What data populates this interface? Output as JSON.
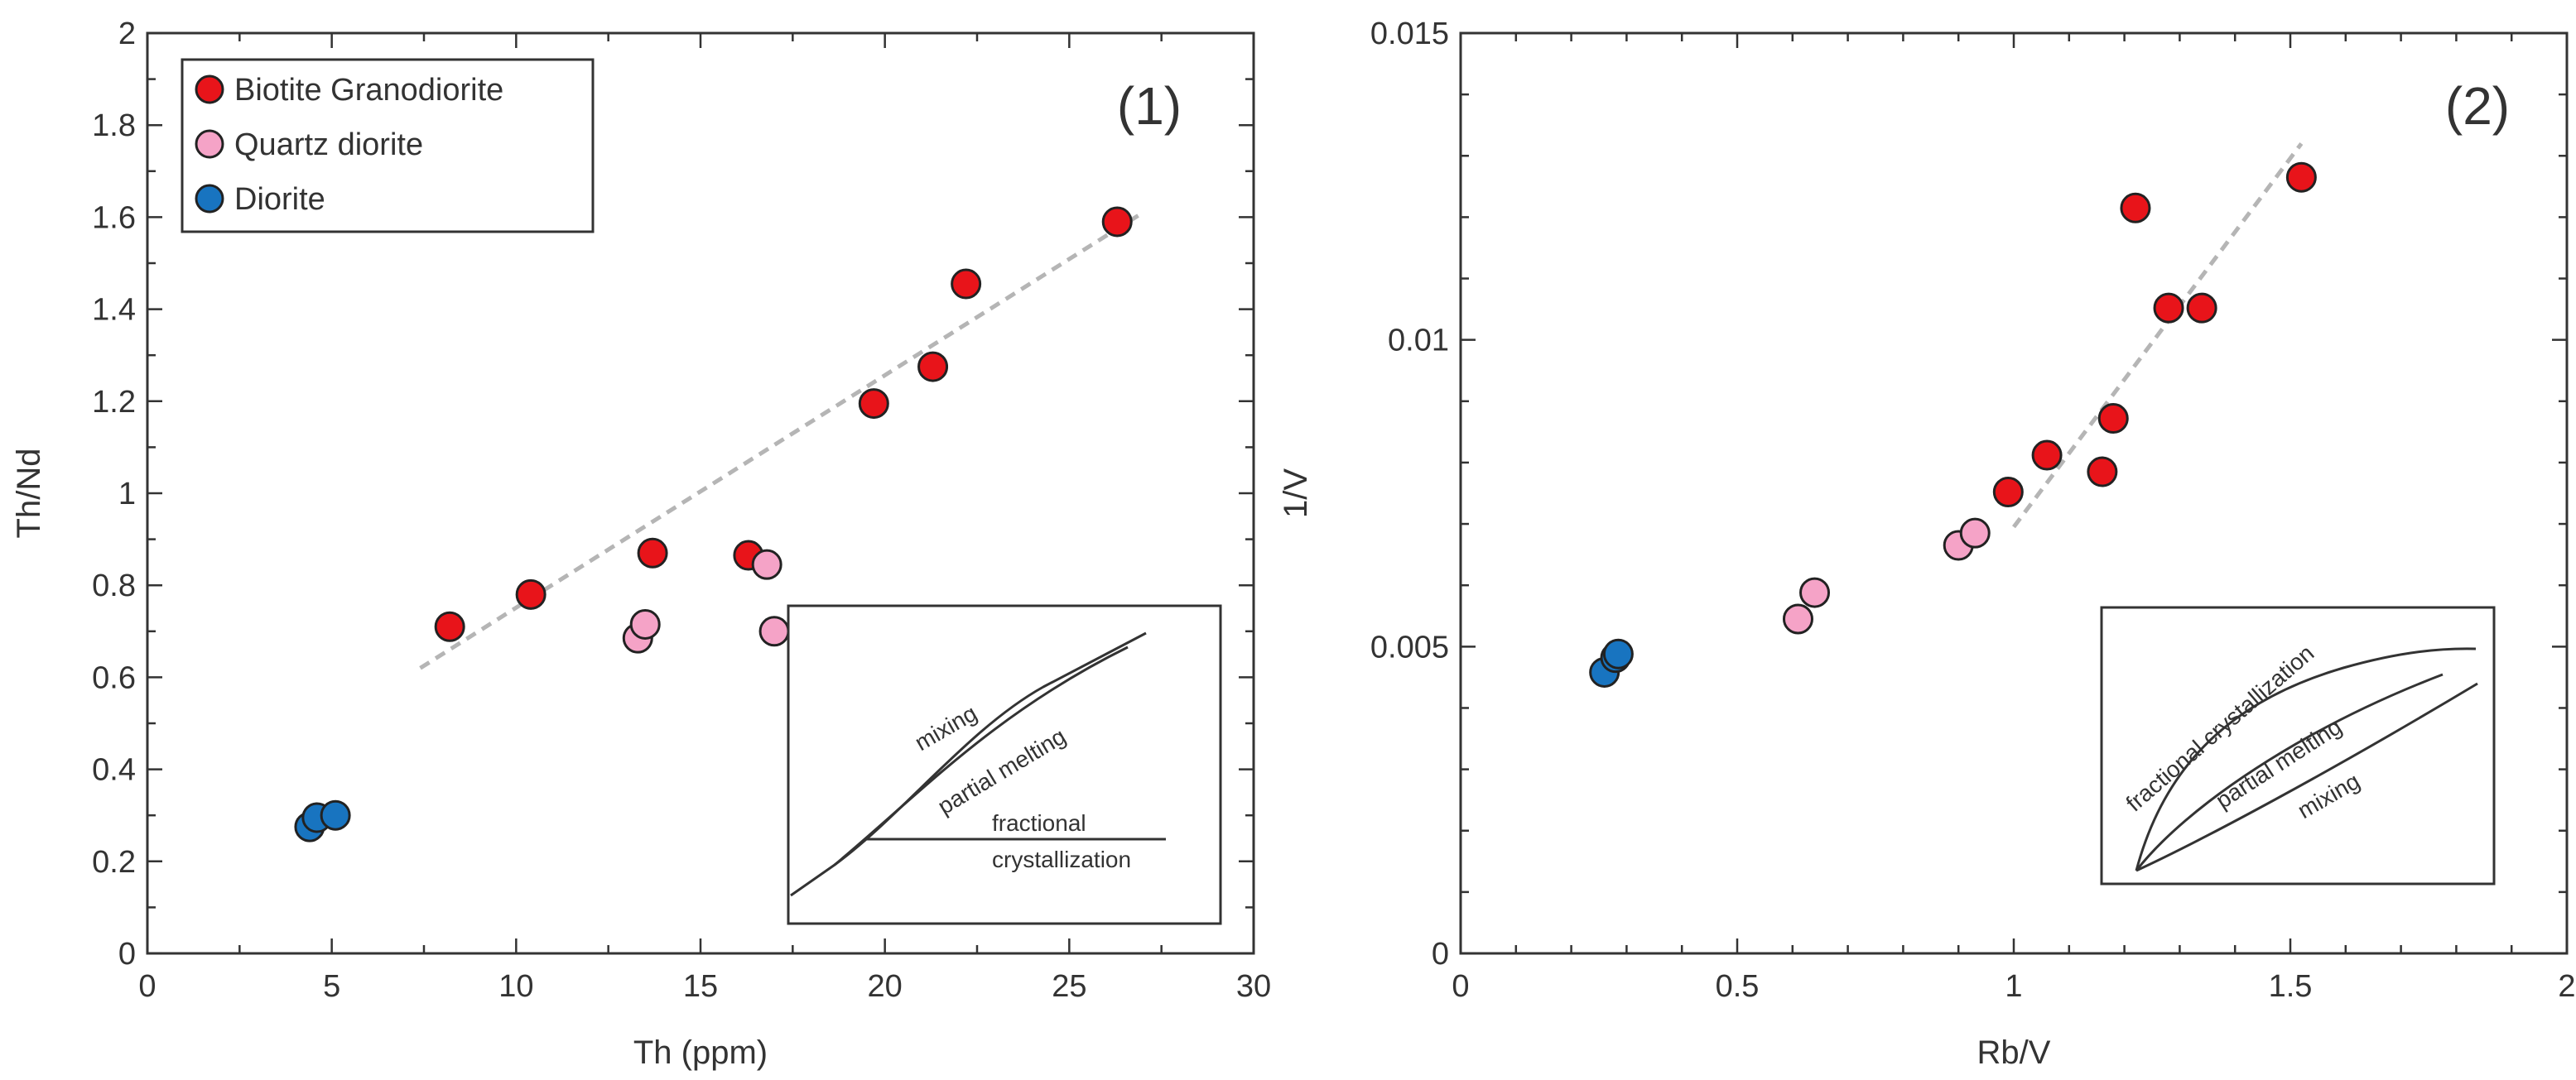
{
  "colors": {
    "Biotite Granodiorite": "#e8141a",
    "Quartz diorite": "#f5a3c7",
    "Diorite": "#1874c0"
  },
  "chart_data": [
    {
      "type": "scatter",
      "panel_tag": "(1)",
      "xlabel": "Th (ppm)",
      "ylabel": "Th/Nd",
      "xlim": [
        0,
        30
      ],
      "ylim": [
        0,
        2
      ],
      "xticks": [
        "0",
        "5",
        "10",
        "15",
        "20",
        "25",
        "30"
      ],
      "yticks": [
        "0",
        "0.2",
        "0.4",
        "0.6",
        "0.8",
        "1",
        "1.2",
        "1.4",
        "1.6",
        "1.8",
        "2"
      ],
      "legend": {
        "position": "top-left",
        "entries": [
          "Biotite Granodiorite",
          "Quartz diorite",
          "Diorite"
        ]
      },
      "series": [
        {
          "name": "Biotite Granodiorite",
          "points": [
            [
              8.2,
              0.71
            ],
            [
              10.4,
              0.78
            ],
            [
              13.7,
              0.87
            ],
            [
              16.3,
              0.865
            ],
            [
              19.7,
              1.195
            ],
            [
              21.3,
              1.275
            ],
            [
              22.2,
              1.455
            ],
            [
              26.3,
              1.59
            ]
          ]
        },
        {
          "name": "Quartz diorite",
          "points": [
            [
              13.3,
              0.685
            ],
            [
              13.5,
              0.715
            ],
            [
              16.8,
              0.845
            ],
            [
              17.0,
              0.7
            ]
          ]
        },
        {
          "name": "Diorite",
          "points": [
            [
              4.4,
              0.275
            ],
            [
              4.6,
              0.295
            ],
            [
              5.1,
              0.3
            ]
          ]
        }
      ],
      "trend_line": [
        [
          7.4,
          0.62
        ],
        [
          27.0,
          1.61
        ]
      ],
      "inset": {
        "position": "bottom-right",
        "labels": [
          "mixing",
          "partial melting",
          "fractional",
          "crystallization"
        ]
      }
    },
    {
      "type": "scatter",
      "panel_tag": "(2)",
      "xlabel": "Rb/V",
      "ylabel": "1/V",
      "xlim": [
        0,
        2
      ],
      "ylim": [
        0,
        0.015
      ],
      "xticks": [
        "0",
        "0.5",
        "1",
        "1.5",
        "2"
      ],
      "yticks": [
        "0",
        "0.005",
        "0.01",
        "0.015"
      ],
      "series": [
        {
          "name": "Biotite Granodiorite",
          "points": [
            [
              0.99,
              0.00752
            ],
            [
              1.06,
              0.00812
            ],
            [
              1.16,
              0.00785
            ],
            [
              1.18,
              0.00872
            ],
            [
              1.22,
              0.01215
            ],
            [
              1.28,
              0.01052
            ],
            [
              1.34,
              0.01052
            ],
            [
              1.52,
              0.01265
            ]
          ]
        },
        {
          "name": "Quartz diorite",
          "points": [
            [
              0.61,
              0.00545
            ],
            [
              0.64,
              0.00588
            ],
            [
              0.9,
              0.00665
            ],
            [
              0.93,
              0.00685
            ]
          ]
        },
        {
          "name": "Diorite",
          "points": [
            [
              0.26,
              0.00458
            ],
            [
              0.28,
              0.00482
            ],
            [
              0.285,
              0.00488
            ]
          ]
        }
      ],
      "trend_line": [
        [
          1.0,
          0.00695
        ],
        [
          1.52,
          0.0132
        ]
      ],
      "inset": {
        "position": "bottom-right",
        "labels": [
          "fractional crystallization",
          "partial melting",
          "mixing"
        ]
      }
    }
  ]
}
